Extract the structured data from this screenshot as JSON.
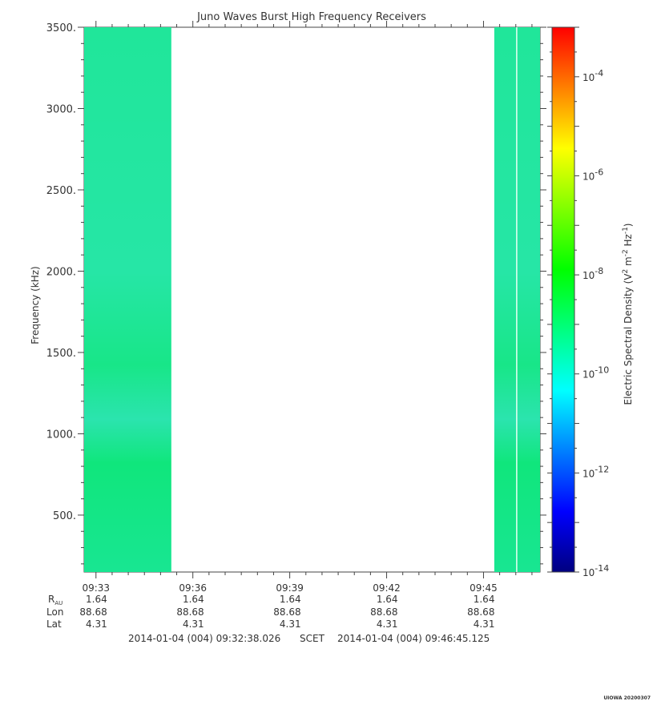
{
  "chart_data": {
    "type": "heatmap",
    "title": "Juno Waves Burst High Frequency Receivers",
    "ylabel": "Frequency (kHz)",
    "ylim": [
      150,
      3500
    ],
    "y_ticks": [
      "500.",
      "1000.",
      "1500.",
      "2000.",
      "2500.",
      "3000.",
      "3500."
    ],
    "y_tick_values": [
      500,
      1000,
      1500,
      2000,
      2500,
      3000,
      3500
    ],
    "x_ticks": [
      "09:33",
      "09:36",
      "09:39",
      "09:42",
      "09:45"
    ],
    "x_tick_minutes": [
      "09:33",
      "09:36",
      "09:39",
      "09:42",
      "09:45"
    ],
    "x_range": [
      "09:32:38",
      "09:46:45"
    ],
    "data_segments": [
      {
        "start": "09:32:38",
        "end": "09:35:20"
      },
      {
        "start": "09:45:20",
        "end": "09:46:45"
      }
    ],
    "ephemeris": {
      "row_labels": {
        "r_main": "R",
        "r_sub": "AU",
        "lon": "Lon",
        "lat": "Lat"
      },
      "values": [
        {
          "r": "1.64",
          "lon": "88.68",
          "lat": "4.31"
        },
        {
          "r": "1.64",
          "lon": "88.68",
          "lat": "4.31"
        },
        {
          "r": "1.64",
          "lon": "88.68",
          "lat": "4.31"
        },
        {
          "r": "1.64",
          "lon": "88.68",
          "lat": "4.31"
        },
        {
          "r": "1.64",
          "lon": "88.68",
          "lat": "4.31"
        }
      ]
    },
    "time_span": {
      "start": "2014-01-04 (004) 09:32:38.026",
      "label": "SCET",
      "end": "2014-01-04 (004) 09:46:45.125"
    },
    "colorbar": {
      "label_main": "Electric Spectral Density (V",
      "label_parts": [
        "2",
        " m",
        "-2",
        " Hz",
        "-1",
        ")"
      ],
      "scale": "log",
      "range_exponents": [
        -14,
        -3
      ],
      "tick_exponents": [
        "-14",
        "-12",
        "-10",
        "-8",
        "-6",
        "-4"
      ],
      "colors": [
        "#000080",
        "#0000ff",
        "#0080ff",
        "#00ffff",
        "#00ff80",
        "#00ff00",
        "#80ff00",
        "#ffff00",
        "#ff8000",
        "#ff0000"
      ]
    },
    "fill_color": "#1ae68c",
    "credit": "UIOWA 20200307"
  }
}
